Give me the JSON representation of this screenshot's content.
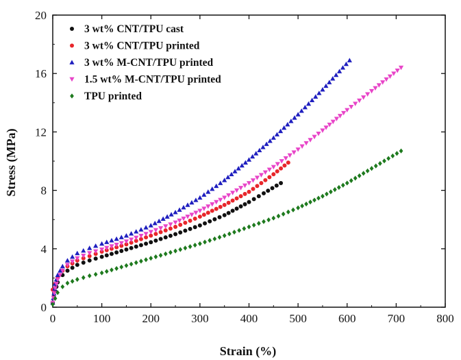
{
  "chart_data": {
    "type": "scatter",
    "xlabel": "Strain (%)",
    "ylabel": "Stress (MPa)",
    "xlim": [
      0,
      800
    ],
    "ylim": [
      0,
      20
    ],
    "xticks": [
      "0",
      "100",
      "200",
      "300",
      "400",
      "500",
      "600",
      "700",
      "800"
    ],
    "yticks": [
      "0",
      "4",
      "8",
      "12",
      "16",
      "20"
    ],
    "grid": false,
    "legend_position": "top-left",
    "series": [
      {
        "name": "3 wt% CNT/TPU cast",
        "color": "#111111",
        "marker": "circle",
        "x": [
          0,
          5,
          10,
          20,
          30,
          50,
          75,
          100,
          150,
          200,
          250,
          300,
          350,
          400,
          430,
          465
        ],
        "y": [
          0.3,
          1.1,
          1.7,
          2.2,
          2.5,
          2.9,
          3.2,
          3.45,
          3.95,
          4.45,
          5.0,
          5.6,
          6.3,
          7.2,
          7.8,
          8.5
        ]
      },
      {
        "name": "3 wt% CNT/TPU printed",
        "color": "#e8262b",
        "marker": "circle",
        "x": [
          0,
          5,
          10,
          20,
          30,
          50,
          75,
          100,
          150,
          200,
          250,
          300,
          350,
          400,
          450,
          480
        ],
        "y": [
          1.2,
          1.6,
          2.0,
          2.5,
          2.8,
          3.2,
          3.5,
          3.8,
          4.3,
          4.9,
          5.5,
          6.2,
          7.0,
          7.9,
          9.1,
          9.9
        ]
      },
      {
        "name": "3 wt% M-CNT/TPU printed",
        "color": "#1f1fbf",
        "marker": "triangle",
        "x": [
          0,
          5,
          10,
          20,
          30,
          50,
          75,
          100,
          150,
          200,
          250,
          300,
          350,
          400,
          450,
          500,
          550,
          605
        ],
        "y": [
          0.3,
          1.6,
          2.2,
          2.8,
          3.2,
          3.7,
          4.05,
          4.35,
          4.9,
          5.6,
          6.5,
          7.5,
          8.7,
          10.1,
          11.6,
          13.2,
          14.9,
          16.9
        ]
      },
      {
        "name": "1.5 wt% M-CNT/TPU printed",
        "color": "#e845c8",
        "marker": "triangle-down",
        "x": [
          0,
          5,
          10,
          20,
          30,
          50,
          75,
          100,
          150,
          200,
          250,
          300,
          350,
          400,
          450,
          500,
          550,
          600,
          650,
          710
        ],
        "y": [
          0.3,
          1.3,
          1.9,
          2.5,
          2.9,
          3.35,
          3.7,
          3.95,
          4.5,
          5.15,
          5.8,
          6.6,
          7.5,
          8.5,
          9.6,
          10.8,
          12.1,
          13.5,
          14.8,
          16.4
        ]
      },
      {
        "name": "TPU printed",
        "color": "#1e7a1e",
        "marker": "diamond",
        "x": [
          0,
          5,
          10,
          20,
          30,
          50,
          75,
          100,
          150,
          200,
          250,
          300,
          350,
          400,
          450,
          500,
          550,
          600,
          650,
          710
        ],
        "y": [
          0.2,
          0.6,
          1.0,
          1.4,
          1.65,
          1.9,
          2.15,
          2.35,
          2.85,
          3.35,
          3.85,
          4.35,
          4.9,
          5.5,
          6.1,
          6.8,
          7.6,
          8.5,
          9.5,
          10.7
        ]
      }
    ]
  }
}
